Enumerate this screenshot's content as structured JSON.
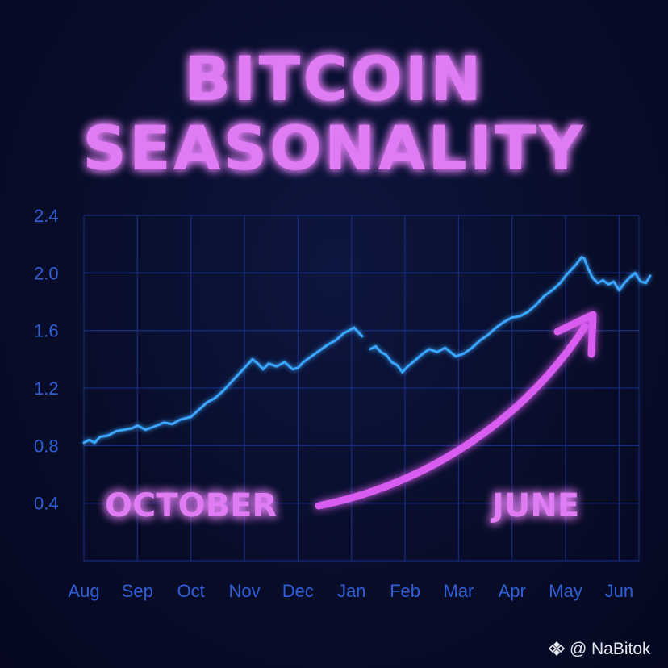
{
  "chart_data": {
    "type": "line",
    "title_lines": [
      "BITCOIN",
      "SEASONALITY"
    ],
    "xlabel": "",
    "ylabel": "",
    "categories": [
      "Aug",
      "Sep",
      "Oct",
      "Nov",
      "Dec",
      "Jan",
      "Feb",
      "Mar",
      "Apr",
      "May",
      "Jun"
    ],
    "y_ticks": [
      "2.4",
      "2.0",
      "1.6",
      "1.2",
      "0.8",
      "0.4"
    ],
    "ylim": [
      0,
      2.4
    ],
    "grid": true,
    "series": [
      {
        "segments": [
          [
            [
              0,
              0.82
            ],
            [
              0.1,
              0.84
            ],
            [
              0.2,
              0.82
            ],
            [
              0.3,
              0.86
            ],
            [
              0.45,
              0.87
            ],
            [
              0.6,
              0.9
            ],
            [
              0.75,
              0.91
            ],
            [
              0.9,
              0.92
            ],
            [
              1.0,
              0.94
            ],
            [
              1.15,
              0.91
            ],
            [
              1.3,
              0.93
            ],
            [
              1.5,
              0.96
            ],
            [
              1.65,
              0.95
            ],
            [
              1.8,
              0.98
            ],
            [
              2.0,
              1.0
            ],
            [
              2.15,
              1.05
            ],
            [
              2.3,
              1.1
            ],
            [
              2.45,
              1.13
            ],
            [
              2.6,
              1.18
            ],
            [
              2.75,
              1.24
            ],
            [
              2.9,
              1.3
            ],
            [
              3.05,
              1.36
            ],
            [
              3.15,
              1.4
            ],
            [
              3.25,
              1.37
            ],
            [
              3.35,
              1.33
            ],
            [
              3.45,
              1.37
            ],
            [
              3.6,
              1.35
            ],
            [
              3.75,
              1.38
            ],
            [
              3.9,
              1.33
            ],
            [
              4.0,
              1.34
            ],
            [
              4.1,
              1.38
            ],
            [
              4.25,
              1.42
            ],
            [
              4.4,
              1.46
            ],
            [
              4.55,
              1.5
            ],
            [
              4.7,
              1.53
            ],
            [
              4.85,
              1.58
            ],
            [
              4.95,
              1.6
            ],
            [
              5.05,
              1.62
            ],
            [
              5.12,
              1.59
            ],
            [
              5.2,
              1.56
            ]
          ],
          [
            [
              5.35,
              1.47
            ],
            [
              5.45,
              1.49
            ],
            [
              5.55,
              1.45
            ],
            [
              5.65,
              1.43
            ],
            [
              5.75,
              1.38
            ],
            [
              5.85,
              1.36
            ],
            [
              5.95,
              1.31
            ],
            [
              6.05,
              1.35
            ],
            [
              6.15,
              1.38
            ],
            [
              6.3,
              1.43
            ],
            [
              6.45,
              1.47
            ],
            [
              6.6,
              1.45
            ],
            [
              6.75,
              1.48
            ],
            [
              6.85,
              1.45
            ],
            [
              6.95,
              1.42
            ],
            [
              7.1,
              1.44
            ],
            [
              7.25,
              1.48
            ],
            [
              7.4,
              1.53
            ],
            [
              7.55,
              1.57
            ],
            [
              7.7,
              1.62
            ],
            [
              7.85,
              1.66
            ],
            [
              8.0,
              1.69
            ],
            [
              8.15,
              1.7
            ],
            [
              8.3,
              1.73
            ],
            [
              8.45,
              1.78
            ],
            [
              8.6,
              1.84
            ],
            [
              8.75,
              1.88
            ],
            [
              8.9,
              1.93
            ],
            [
              9.0,
              1.98
            ],
            [
              9.1,
              2.02
            ],
            [
              9.2,
              2.06
            ],
            [
              9.3,
              2.11
            ],
            [
              9.35,
              2.1
            ],
            [
              9.42,
              2.03
            ],
            [
              9.5,
              1.97
            ],
            [
              9.6,
              1.93
            ],
            [
              9.7,
              1.95
            ],
            [
              9.8,
              1.92
            ],
            [
              9.9,
              1.94
            ],
            [
              10.0,
              1.88
            ],
            [
              10.1,
              1.93
            ],
            [
              10.2,
              1.97
            ],
            [
              10.3,
              2.0
            ],
            [
              10.4,
              1.94
            ],
            [
              10.5,
              1.93
            ],
            [
              10.58,
              1.98
            ]
          ]
        ],
        "color": "#3aa6ff"
      }
    ],
    "annotations": {
      "left_label": "OCTOBER",
      "right_label": "JUNE"
    }
  },
  "watermark": {
    "at": "@",
    "handle": "NaBitok"
  },
  "colors": {
    "background": "#070c28",
    "grid": "#1a2f8a",
    "axis_text": "#2e5fd6",
    "line": "#3aa6ff",
    "neon_pink": "#e07cf3",
    "arrow": "#d95cf0"
  }
}
